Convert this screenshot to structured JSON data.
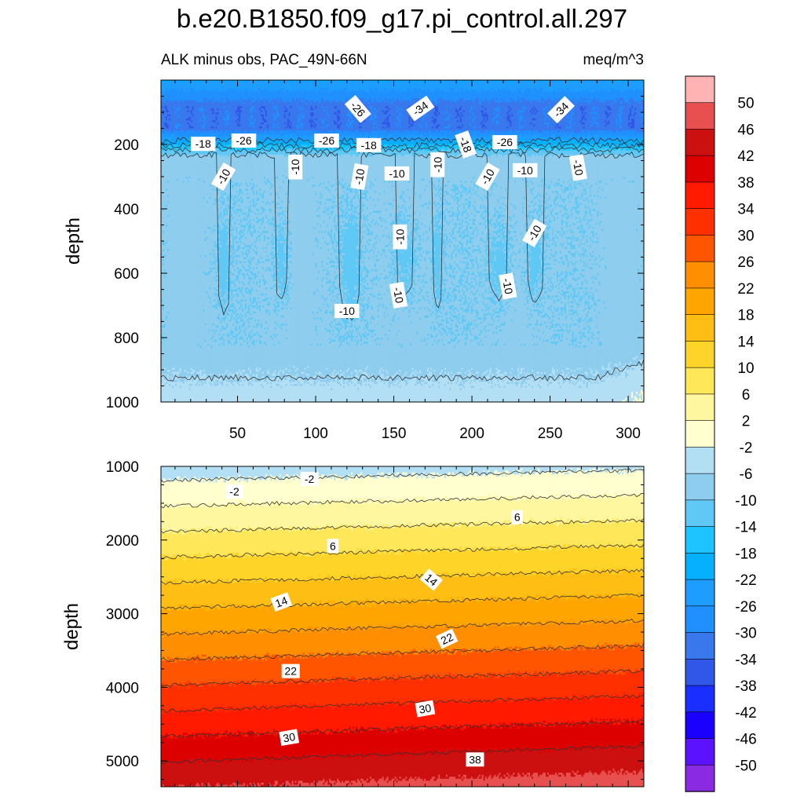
{
  "title": "b.e20.B1850.f09_g17.pi_control.all.297",
  "subtitle_left": "ALK minus obs, PAC_49N-66N",
  "subtitle_right": "meq/m^3",
  "colors": {
    "levels": [
      -50,
      -46,
      -42,
      -38,
      -34,
      -30,
      -26,
      -22,
      -18,
      -14,
      -10,
      -6,
      -2,
      2,
      6,
      10,
      14,
      18,
      22,
      26,
      30,
      34,
      38,
      42,
      46,
      50
    ],
    "bins": [
      "#8a2be2",
      "#5a12ff",
      "#1a00ff",
      "#1a2eff",
      "#3057e8",
      "#3878ec",
      "#2090ff",
      "#1d9dff",
      "#05b0ff",
      "#1ec4ff",
      "#60c8f5",
      "#8ecdee",
      "#b3dff5",
      "#ffffcf",
      "#fff6a0",
      "#ffe75a",
      "#ffd429",
      "#ffbe14",
      "#ffa500",
      "#ff8f00",
      "#ff5500",
      "#ff3000",
      "#ff1a00",
      "#dd0000",
      "#cc1010",
      "#e85050",
      "#ffb3b3"
    ]
  },
  "chart_data": [
    {
      "type": "contour",
      "name": "upper",
      "xlabel": "",
      "ylabel": "depth",
      "xlim": [
        1,
        310
      ],
      "ylim": [
        1000,
        0
      ],
      "xticks": [
        50,
        100,
        150,
        200,
        250,
        300
      ],
      "yticks": [
        200,
        400,
        600,
        800,
        1000
      ],
      "contour_labels": [
        {
          "text": "-26",
          "x": 127,
          "y": 90,
          "angle": 50
        },
        {
          "text": "-34",
          "x": 167,
          "y": 88,
          "angle": -35
        },
        {
          "text": "-34",
          "x": 257,
          "y": 92,
          "angle": -45
        },
        {
          "text": "-18",
          "x": 28,
          "y": 198,
          "angle": 0
        },
        {
          "text": "-26",
          "x": 54,
          "y": 188,
          "angle": 0
        },
        {
          "text": "-26",
          "x": 107,
          "y": 188,
          "angle": 0
        },
        {
          "text": "-18",
          "x": 134,
          "y": 202,
          "angle": 0
        },
        {
          "text": "-18",
          "x": 196,
          "y": 200,
          "angle": 70
        },
        {
          "text": "-26",
          "x": 221,
          "y": 193,
          "angle": 0
        },
        {
          "text": "-10",
          "x": 41,
          "y": 300,
          "angle": -60
        },
        {
          "text": "-10",
          "x": 87,
          "y": 270,
          "angle": -90
        },
        {
          "text": "-10",
          "x": 128,
          "y": 300,
          "angle": -80
        },
        {
          "text": "-10",
          "x": 152,
          "y": 290,
          "angle": 0
        },
        {
          "text": "-10",
          "x": 178,
          "y": 263,
          "angle": -90
        },
        {
          "text": "-10",
          "x": 210,
          "y": 300,
          "angle": -60
        },
        {
          "text": "-10",
          "x": 234,
          "y": 280,
          "angle": 0
        },
        {
          "text": "-10",
          "x": 268,
          "y": 272,
          "angle": 80
        },
        {
          "text": "-10",
          "x": 154,
          "y": 487,
          "angle": -90
        },
        {
          "text": "-10",
          "x": 240,
          "y": 475,
          "angle": -60
        },
        {
          "text": "-10",
          "x": 223,
          "y": 640,
          "angle": 80
        },
        {
          "text": "-10",
          "x": 153,
          "y": 668,
          "angle": 80
        },
        {
          "text": "-10",
          "x": 120,
          "y": 717,
          "angle": 0
        }
      ]
    },
    {
      "type": "contour",
      "name": "lower",
      "xlabel": "",
      "ylabel": "depth",
      "xlim": [
        1,
        310
      ],
      "ylim": [
        5350,
        1000
      ],
      "xticks": [
        50,
        100,
        150,
        200,
        250,
        300
      ],
      "yticks": [
        1000,
        2000,
        3000,
        4000,
        5000
      ],
      "contour_labels": [
        {
          "text": "-2",
          "x": 48,
          "y": 1340,
          "angle": 0
        },
        {
          "text": "-2",
          "x": 96,
          "y": 1170,
          "angle": 0
        },
        {
          "text": "6",
          "x": 229,
          "y": 1690,
          "angle": 0
        },
        {
          "text": "6",
          "x": 111,
          "y": 2080,
          "angle": 0
        },
        {
          "text": "14",
          "x": 174,
          "y": 2540,
          "angle": 40
        },
        {
          "text": "14",
          "x": 78,
          "y": 2840,
          "angle": -20
        },
        {
          "text": "22",
          "x": 184,
          "y": 3340,
          "angle": -25
        },
        {
          "text": "22",
          "x": 84,
          "y": 3780,
          "angle": 0
        },
        {
          "text": "30",
          "x": 170,
          "y": 4290,
          "angle": -10
        },
        {
          "text": "30",
          "x": 83,
          "y": 4680,
          "angle": -10
        },
        {
          "text": "38",
          "x": 202,
          "y": 4980,
          "angle": 0
        }
      ]
    }
  ]
}
